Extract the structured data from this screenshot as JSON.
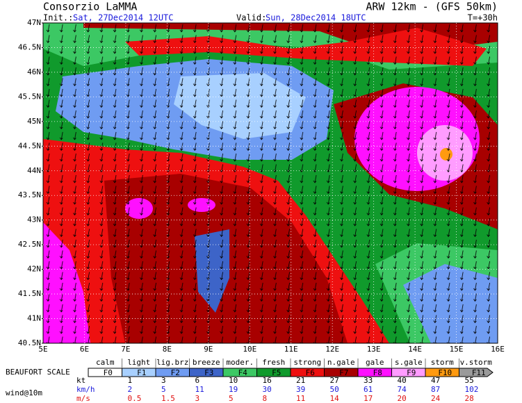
{
  "header": {
    "title": "Consorzio LaMMA",
    "model": "ARW 12km - (GFS 50km)",
    "init_label": "Init.:",
    "init": "Sat, 27Dec2014 12UTC",
    "valid_label": "Valid:",
    "valid": "Sun, 28Dec2014 18UTC",
    "lead": "T=+30h"
  },
  "map": {
    "lat_labels": [
      "47N",
      "46.5N",
      "46N",
      "45.5N",
      "45N",
      "44.5N",
      "44N",
      "43.5N",
      "43N",
      "42.5N",
      "42N",
      "41.5N",
      "41N",
      "40.5N"
    ],
    "lon_labels": [
      "5E",
      "6E",
      "7E",
      "8E",
      "9E",
      "10E",
      "11E",
      "12E",
      "13E",
      "14E",
      "15E",
      "16E"
    ]
  },
  "legend": {
    "title": "BEAUFORT SCALE",
    "variable": "wind@10m",
    "classes": [
      {
        "name": "calm",
        "force": "F0",
        "color": "#ffffff"
      },
      {
        "name": "light",
        "force": "F1",
        "color": "#a8d0ff"
      },
      {
        "name": "lig.brz",
        "force": "F2",
        "color": "#6f9cf2"
      },
      {
        "name": "breeze",
        "force": "F3",
        "color": "#3d64c8"
      },
      {
        "name": "moder.",
        "force": "F4",
        "color": "#3cc864"
      },
      {
        "name": "fresh",
        "force": "F5",
        "color": "#109a2c"
      },
      {
        "name": "strong",
        "force": "F6",
        "color": "#ee1010"
      },
      {
        "name": "n.gale",
        "force": "F7",
        "color": "#a80000"
      },
      {
        "name": "gale",
        "force": "F8",
        "color": "#ff10ff"
      },
      {
        "name": "s.gale",
        "force": "F9",
        "color": "#ff9cff"
      },
      {
        "name": "storm",
        "force": "F10",
        "color": "#ff9a10"
      },
      {
        "name": "v.storm",
        "force": "F11",
        "color": "#9a9a9a"
      }
    ],
    "units": [
      {
        "label": "kt",
        "color": "#000000"
      },
      {
        "label": "km/h",
        "color": "#1a1adc"
      },
      {
        "label": "m/s",
        "color": "#e01010"
      }
    ],
    "kt": [
      1,
      3,
      6,
      10,
      16,
      21,
      27,
      33,
      40,
      47,
      55
    ],
    "kmh": [
      2,
      5,
      11,
      19,
      30,
      39,
      50,
      61,
      74,
      87,
      102
    ],
    "ms": [
      0.5,
      1.5,
      3,
      5,
      8,
      11,
      14,
      17,
      20,
      24,
      28
    ]
  }
}
